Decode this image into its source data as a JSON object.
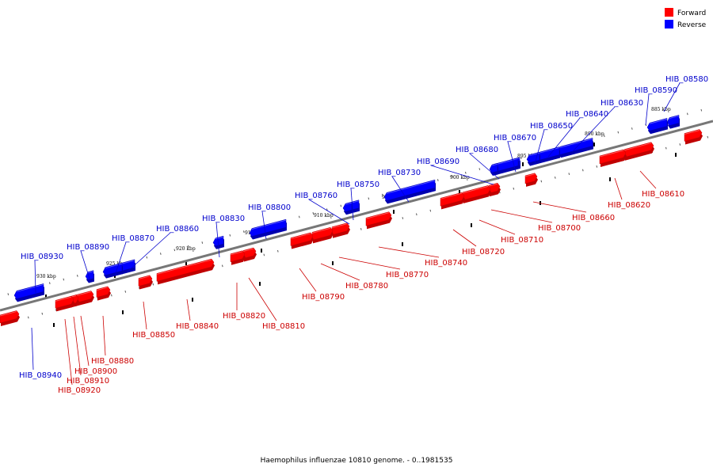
{
  "caption": "Haemophilus influenzae 10810 genome. - 0..1981535",
  "colors": {
    "forward": "#ff0000",
    "forward_dark": "#c00000",
    "forward_label": "#cc0000",
    "reverse": "#0000ff",
    "reverse_dark": "#0000b0",
    "reverse_label": "#0000cc",
    "axis": "#777777"
  },
  "legend": [
    {
      "label": "Forward",
      "strand": "forward"
    },
    {
      "label": "Reverse",
      "strand": "reverse"
    }
  ],
  "kbp_labels": [
    "885 kbp",
    "890 kbp",
    "895 kbp",
    "900 kbp",
    "905 kbp",
    "910 kbp",
    "915 kbp",
    "920 kbp",
    "925 kbp",
    "930 kbp"
  ],
  "genes": [
    {
      "id": "HIB_08580",
      "strand": "reverse"
    },
    {
      "id": "HIB_08590",
      "strand": "reverse"
    },
    {
      "id": "HIB_08610",
      "strand": "forward"
    },
    {
      "id": "HIB_08620",
      "strand": "forward"
    },
    {
      "id": "HIB_08630",
      "strand": "reverse"
    },
    {
      "id": "HIB_08640",
      "strand": "reverse"
    },
    {
      "id": "HIB_08650",
      "strand": "reverse"
    },
    {
      "id": "HIB_08660",
      "strand": "forward"
    },
    {
      "id": "HIB_08670",
      "strand": "reverse"
    },
    {
      "id": "HIB_08680",
      "strand": "reverse"
    },
    {
      "id": "HIB_08690",
      "strand": "reverse"
    },
    {
      "id": "HIB_08700",
      "strand": "forward"
    },
    {
      "id": "HIB_08710",
      "strand": "forward"
    },
    {
      "id": "HIB_08720",
      "strand": "forward"
    },
    {
      "id": "HIB_08730",
      "strand": "reverse"
    },
    {
      "id": "HIB_08740",
      "strand": "forward"
    },
    {
      "id": "HIB_08750",
      "strand": "reverse"
    },
    {
      "id": "HIB_08760",
      "strand": "reverse"
    },
    {
      "id": "HIB_08770",
      "strand": "forward"
    },
    {
      "id": "HIB_08780",
      "strand": "forward"
    },
    {
      "id": "HIB_08790",
      "strand": "forward"
    },
    {
      "id": "HIB_08800",
      "strand": "reverse"
    },
    {
      "id": "HIB_08810",
      "strand": "forward"
    },
    {
      "id": "HIB_08820",
      "strand": "forward"
    },
    {
      "id": "HIB_08830",
      "strand": "reverse"
    },
    {
      "id": "HIB_08840",
      "strand": "forward"
    },
    {
      "id": "HIB_08850",
      "strand": "forward"
    },
    {
      "id": "HIB_08860",
      "strand": "reverse"
    },
    {
      "id": "HIB_08870",
      "strand": "reverse"
    },
    {
      "id": "HIB_08880",
      "strand": "forward"
    },
    {
      "id": "HIB_08890",
      "strand": "reverse"
    },
    {
      "id": "HIB_08900",
      "strand": "forward"
    },
    {
      "id": "HIB_08910",
      "strand": "forward"
    },
    {
      "id": "HIB_08920",
      "strand": "forward"
    },
    {
      "id": "HIB_08930",
      "strand": "reverse"
    },
    {
      "id": "HIB_08940",
      "strand": "reverse"
    }
  ]
}
